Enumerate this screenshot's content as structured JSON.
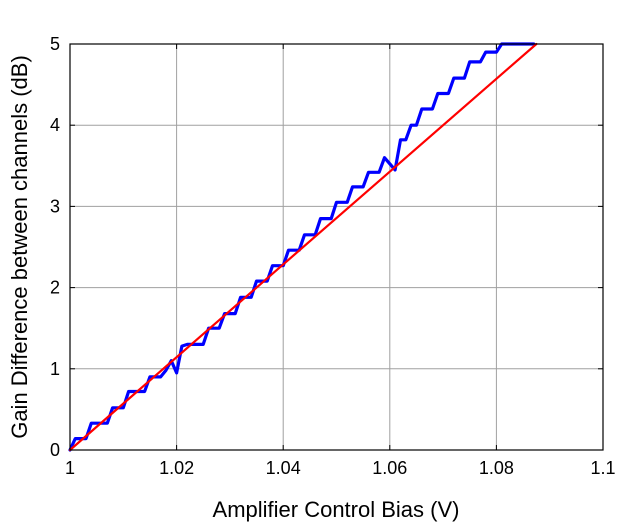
{
  "chart_data": {
    "type": "line",
    "title": "",
    "xlabel": "Amplifier Control Bias (V)",
    "ylabel": "Gain Difference between channels (dB)",
    "xlim": [
      1,
      1.1
    ],
    "ylim": [
      0,
      5
    ],
    "xticks": [
      1,
      1.02,
      1.04,
      1.06,
      1.08,
      1.1
    ],
    "xtick_labels": [
      "1",
      "1.02",
      "1.04",
      "1.06",
      "1.08",
      "1.1"
    ],
    "yticks": [
      0,
      1,
      2,
      3,
      4,
      5
    ],
    "ytick_labels": [
      "0",
      "1",
      "2",
      "3",
      "4",
      "5"
    ],
    "grid": true,
    "legend": "none",
    "series": [
      {
        "color": "#0000ff",
        "x": [
          1.0,
          1.001,
          1.003,
          1.004,
          1.007,
          1.008,
          1.01,
          1.011,
          1.014,
          1.015,
          1.017,
          1.018,
          1.019,
          1.02,
          1.021,
          1.022,
          1.025,
          1.026,
          1.028,
          1.029,
          1.031,
          1.032,
          1.034,
          1.035,
          1.037,
          1.038,
          1.04,
          1.041,
          1.043,
          1.044,
          1.046,
          1.047,
          1.049,
          1.05,
          1.052,
          1.053,
          1.055,
          1.056,
          1.058,
          1.059,
          1.061,
          1.062,
          1.063,
          1.064,
          1.065,
          1.066,
          1.068,
          1.069,
          1.071,
          1.072,
          1.074,
          1.075,
          1.077,
          1.078,
          1.08,
          1.081,
          1.083,
          1.084,
          1.086,
          1.087
        ],
        "y": [
          0.0,
          0.14,
          0.14,
          0.33,
          0.33,
          0.52,
          0.52,
          0.72,
          0.72,
          0.9,
          0.9,
          0.98,
          1.1,
          0.95,
          1.28,
          1.3,
          1.3,
          1.5,
          1.5,
          1.68,
          1.68,
          1.88,
          1.88,
          2.08,
          2.08,
          2.27,
          2.27,
          2.46,
          2.46,
          2.65,
          2.65,
          2.85,
          2.85,
          3.05,
          3.05,
          3.24,
          3.24,
          3.42,
          3.42,
          3.6,
          3.45,
          3.82,
          3.82,
          4.0,
          4.0,
          4.2,
          4.2,
          4.39,
          4.39,
          4.58,
          4.58,
          4.78,
          4.78,
          4.9,
          4.9,
          5.0,
          5.0,
          5.0,
          5.0,
          5.0
        ]
      },
      {
        "color": "#ff0000",
        "x": [
          1.0,
          1.0875
        ],
        "y": [
          0.0,
          5.0
        ]
      }
    ]
  }
}
